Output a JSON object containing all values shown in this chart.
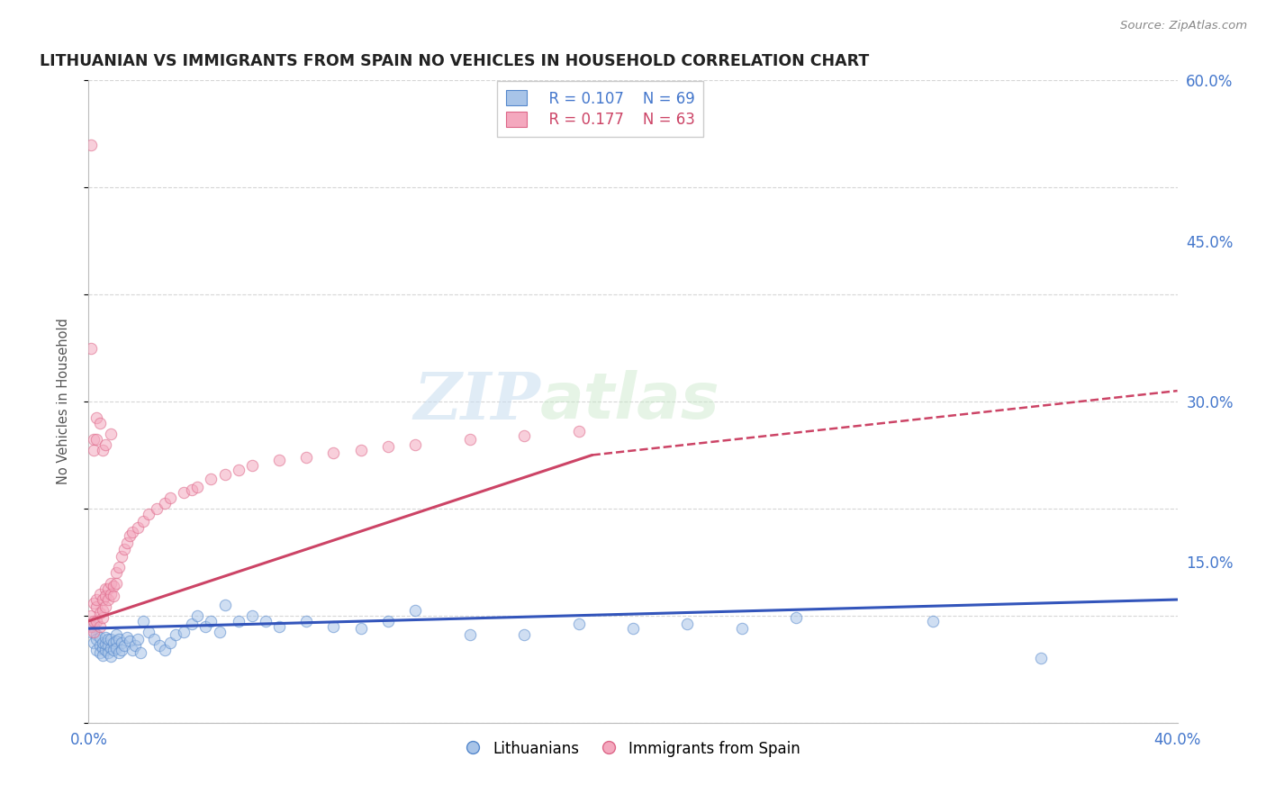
{
  "title": "LITHUANIAN VS IMMIGRANTS FROM SPAIN NO VEHICLES IN HOUSEHOLD CORRELATION CHART",
  "source": "Source: ZipAtlas.com",
  "ylabel": "No Vehicles in Household",
  "xlim": [
    0.0,
    0.4
  ],
  "ylim": [
    0.0,
    0.6
  ],
  "xticks": [
    0.0,
    0.05,
    0.1,
    0.15,
    0.2,
    0.25,
    0.3,
    0.35,
    0.4
  ],
  "yticks": [
    0.0,
    0.15,
    0.3,
    0.45,
    0.6
  ],
  "ytick_labels": [
    "",
    "15.0%",
    "30.0%",
    "45.0%",
    "60.0%"
  ],
  "grid_color": "#cccccc",
  "background_color": "#ffffff",
  "watermark_zip": "ZIP",
  "watermark_atlas": "atlas",
  "legend_R1": "R = 0.107",
  "legend_N1": "N = 69",
  "legend_R2": "R = 0.177",
  "legend_N2": "N = 63",
  "series1_color": "#a8c4e8",
  "series2_color": "#f4a8be",
  "series1_edge": "#5588cc",
  "series2_edge": "#dd6688",
  "trendline1_color": "#3355bb",
  "trendline2_color": "#cc4466",
  "marker_size": 80,
  "marker_alpha": 0.55,
  "series1_label": "Lithuanians",
  "series2_label": "Immigrants from Spain",
  "series1_x": [
    0.001,
    0.002,
    0.002,
    0.003,
    0.003,
    0.003,
    0.004,
    0.004,
    0.004,
    0.005,
    0.005,
    0.005,
    0.006,
    0.006,
    0.006,
    0.007,
    0.007,
    0.007,
    0.008,
    0.008,
    0.008,
    0.009,
    0.009,
    0.01,
    0.01,
    0.01,
    0.011,
    0.011,
    0.012,
    0.012,
    0.013,
    0.014,
    0.015,
    0.016,
    0.017,
    0.018,
    0.019,
    0.02,
    0.022,
    0.024,
    0.026,
    0.028,
    0.03,
    0.032,
    0.035,
    0.038,
    0.04,
    0.043,
    0.045,
    0.048,
    0.05,
    0.055,
    0.06,
    0.065,
    0.07,
    0.08,
    0.09,
    0.1,
    0.11,
    0.12,
    0.14,
    0.16,
    0.18,
    0.2,
    0.22,
    0.24,
    0.26,
    0.31,
    0.35
  ],
  "series1_y": [
    0.085,
    0.075,
    0.09,
    0.082,
    0.078,
    0.068,
    0.072,
    0.08,
    0.065,
    0.07,
    0.075,
    0.063,
    0.068,
    0.074,
    0.08,
    0.072,
    0.078,
    0.065,
    0.07,
    0.078,
    0.062,
    0.075,
    0.068,
    0.082,
    0.076,
    0.07,
    0.078,
    0.065,
    0.075,
    0.068,
    0.072,
    0.08,
    0.076,
    0.068,
    0.072,
    0.078,
    0.065,
    0.095,
    0.085,
    0.078,
    0.072,
    0.068,
    0.075,
    0.082,
    0.085,
    0.092,
    0.1,
    0.09,
    0.095,
    0.085,
    0.11,
    0.095,
    0.1,
    0.095,
    0.09,
    0.095,
    0.09,
    0.088,
    0.095,
    0.105,
    0.082,
    0.082,
    0.092,
    0.088,
    0.092,
    0.088,
    0.098,
    0.095,
    0.06
  ],
  "series2_x": [
    0.001,
    0.001,
    0.002,
    0.002,
    0.002,
    0.003,
    0.003,
    0.003,
    0.004,
    0.004,
    0.004,
    0.005,
    0.005,
    0.005,
    0.006,
    0.006,
    0.006,
    0.007,
    0.007,
    0.008,
    0.008,
    0.009,
    0.009,
    0.01,
    0.01,
    0.011,
    0.012,
    0.013,
    0.014,
    0.015,
    0.016,
    0.018,
    0.02,
    0.022,
    0.025,
    0.028,
    0.03,
    0.035,
    0.038,
    0.04,
    0.045,
    0.05,
    0.055,
    0.06,
    0.07,
    0.08,
    0.09,
    0.1,
    0.11,
    0.12,
    0.14,
    0.16,
    0.18,
    0.001,
    0.001,
    0.002,
    0.002,
    0.003,
    0.003,
    0.004,
    0.005,
    0.006,
    0.008
  ],
  "series2_y": [
    0.09,
    0.1,
    0.095,
    0.112,
    0.085,
    0.108,
    0.095,
    0.115,
    0.102,
    0.12,
    0.09,
    0.098,
    0.115,
    0.105,
    0.125,
    0.108,
    0.118,
    0.125,
    0.115,
    0.13,
    0.12,
    0.128,
    0.118,
    0.14,
    0.13,
    0.145,
    0.155,
    0.162,
    0.168,
    0.175,
    0.178,
    0.182,
    0.188,
    0.195,
    0.2,
    0.205,
    0.21,
    0.215,
    0.218,
    0.22,
    0.228,
    0.232,
    0.236,
    0.24,
    0.245,
    0.248,
    0.252,
    0.255,
    0.258,
    0.26,
    0.265,
    0.268,
    0.272,
    0.54,
    0.35,
    0.265,
    0.255,
    0.285,
    0.265,
    0.28,
    0.255,
    0.26,
    0.27
  ],
  "trendline1_x_start": 0.0,
  "trendline1_x_end": 0.4,
  "trendline1_y_start": 0.088,
  "trendline1_y_end": 0.115,
  "trendline2_x_start": 0.0,
  "trendline2_x_end": 0.185,
  "trendline2_y_start": 0.095,
  "trendline2_y_end": 0.25,
  "trendline2_dash_x_start": 0.185,
  "trendline2_dash_x_end": 0.4,
  "trendline2_dash_y_start": 0.25,
  "trendline2_dash_y_end": 0.31
}
